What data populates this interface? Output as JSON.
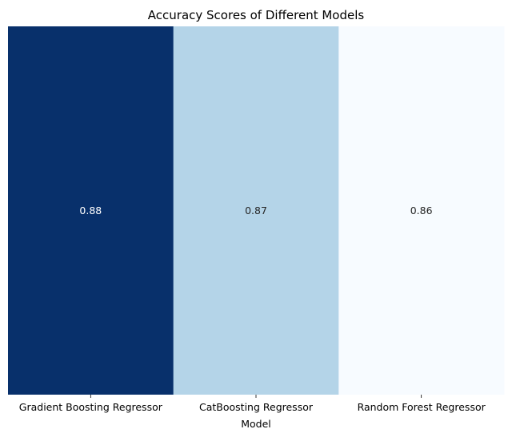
{
  "chart_data": {
    "type": "heatmap",
    "title": "Accuracy Scores of Different Models",
    "xlabel": "Model",
    "ylabel": "",
    "categories": [
      "Gradient Boosting Regressor",
      "CatBoosting Regressor",
      "Random Forest Regressor"
    ],
    "values": [
      0.88,
      0.87,
      0.86
    ],
    "value_labels": [
      "0.88",
      "0.87",
      "0.86"
    ],
    "colormap": "Blues",
    "colorbar": false,
    "cell_colors": [
      "#08306b",
      "#b4d4e8",
      "#f7fbff"
    ],
    "text_colors": [
      "#ffffff",
      "#262626",
      "#262626"
    ],
    "grid": false,
    "legend": "none"
  }
}
